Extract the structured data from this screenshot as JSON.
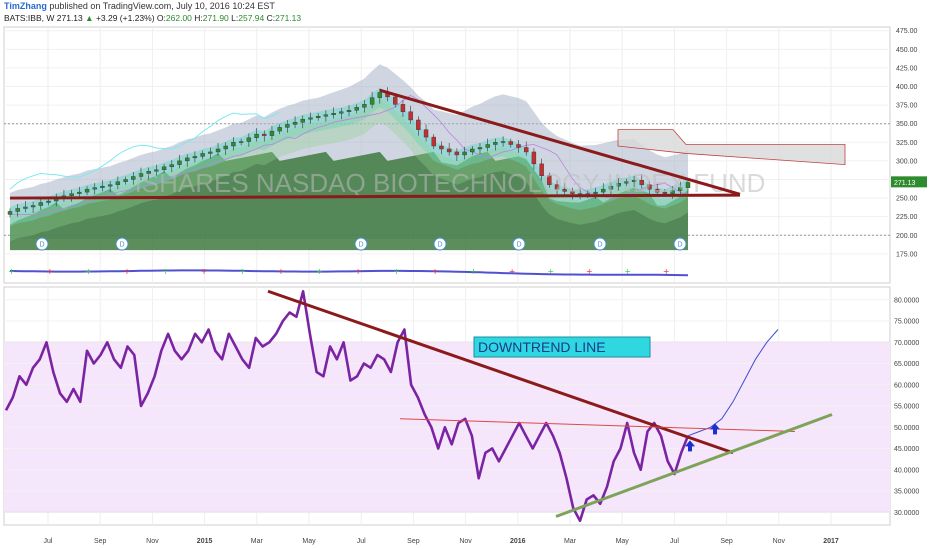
{
  "header": {
    "author": "TimZhang",
    "published": "published on TradingView.com, July 10, 2016 10:24 EST",
    "symbol": "BATS:IBB, W",
    "price": "271.13",
    "change": "+3.29 (+1.23%)",
    "o_label": "O:",
    "o_value": "262.00",
    "h_label": "H:",
    "h_value": "271.90",
    "l_label": "L:",
    "l_value": "257.94",
    "c_label": "C:",
    "c_value": "271.13"
  },
  "chart_data": [
    {
      "type": "candlestick",
      "watermark": "ISHARES NASDAQ BIOTECHNOLOGY INDEX FUND",
      "y_ticks": [
        "475.00",
        "450.00",
        "425.00",
        "400.00",
        "375.00",
        "350.00",
        "325.00",
        "300.00",
        "275.00",
        "250.00",
        "225.00",
        "200.00",
        "175.00"
      ],
      "ylim": [
        160,
        480
      ],
      "last_price_label": "271.13",
      "dividend_markers": [
        "D",
        "D",
        "D",
        "D",
        "D",
        "D",
        "D"
      ],
      "close": [
        232,
        236,
        238,
        240,
        244,
        246,
        250,
        253,
        256,
        258,
        262,
        264,
        266,
        268,
        272,
        275,
        279,
        283,
        286,
        288,
        292,
        295,
        300,
        304,
        306,
        310,
        312,
        316,
        320,
        325,
        326,
        331,
        336,
        334,
        340,
        345,
        349,
        352,
        356,
        358,
        360,
        362,
        364,
        366,
        368,
        372,
        376,
        385,
        392,
        386,
        376,
        366,
        355,
        342,
        332,
        320,
        316,
        312,
        308,
        312,
        316,
        318,
        322,
        325,
        326,
        322,
        318,
        312,
        296,
        280,
        268,
        262,
        259,
        256,
        254,
        256,
        258,
        262,
        266,
        270,
        272,
        274,
        268,
        262,
        258,
        256,
        260,
        264,
        271
      ],
      "trendlines": [
        {
          "from": [
            48,
            395
          ],
          "to": [
            101,
            255
          ],
          "color": "#8b1a1a"
        },
        {
          "from": [
            0,
            250
          ],
          "to": [
            101,
            254
          ],
          "color": "#8b1a1a"
        }
      ]
    },
    {
      "type": "line",
      "y_ticks": [
        "80.0000",
        "75.0000",
        "70.0000",
        "65.0000",
        "60.0000",
        "55.0000",
        "50.0000",
        "45.0000",
        "40.0000",
        "35.0000",
        "30.0000"
      ],
      "ylim": [
        27,
        83
      ],
      "band": [
        30,
        70
      ],
      "annotation": "DOWNTREND LINE",
      "values": [
        54,
        57,
        62,
        60,
        64,
        66,
        70,
        63,
        58,
        56,
        59,
        56,
        68,
        65,
        67,
        70,
        66,
        64,
        69,
        67,
        55,
        58,
        62,
        68,
        72,
        68,
        66,
        68,
        72,
        70,
        73,
        68,
        66,
        72,
        69,
        66,
        64,
        71,
        69,
        70,
        72,
        75,
        77,
        76,
        82,
        72,
        63,
        62,
        69,
        66,
        70,
        61,
        62,
        65,
        64,
        67,
        66,
        63,
        70,
        73,
        60,
        57,
        53,
        50,
        45,
        50,
        46,
        51,
        52,
        48,
        38,
        44,
        45,
        42,
        45,
        48,
        51,
        48,
        45,
        48,
        51,
        48,
        44,
        38,
        31,
        28,
        33,
        34,
        32,
        36,
        42,
        45,
        51,
        44,
        40,
        49,
        51,
        48,
        42,
        39,
        44,
        48
      ],
      "projection": [
        48,
        49,
        50,
        52,
        56,
        61,
        66,
        70,
        73
      ],
      "trendlines": [
        {
          "from": [
            44,
            82
          ],
          "to": [
            109,
            44
          ],
          "color": "#8b1a1a"
        },
        {
          "from": [
            62,
            52
          ],
          "to": [
            125,
            49
          ],
          "color": "#e04848"
        },
        {
          "from": [
            84,
            29
          ],
          "to": [
            133,
            53
          ],
          "color": "#7da35a"
        }
      ]
    }
  ],
  "x_axis": {
    "labels": [
      "Jul",
      "Sep",
      "Nov",
      "2015",
      "Mar",
      "May",
      "Jul",
      "Sep",
      "Nov",
      "2016",
      "Mar",
      "May",
      "Jul",
      "Sep",
      "Nov",
      "2017"
    ]
  },
  "colors": {
    "rsi": "#7b24a3",
    "candle_up": "#2e8b2e",
    "candle_down": "#c03030",
    "downtrend": "#8b1a1a",
    "uptrend": "#7da35a",
    "rsi_band": "#f5e6fb",
    "annotation_bg": "#2fd7e0"
  }
}
